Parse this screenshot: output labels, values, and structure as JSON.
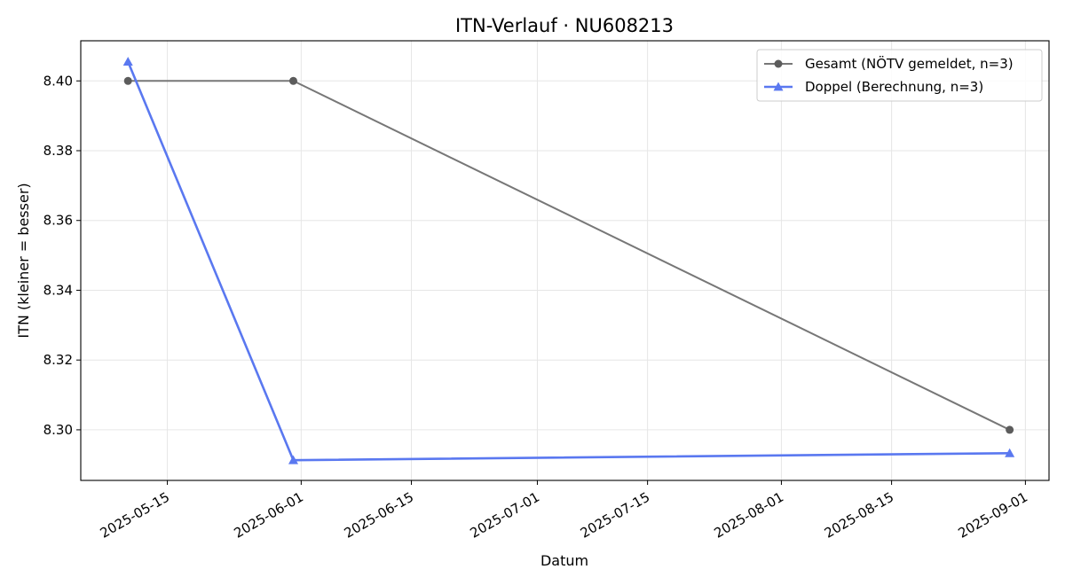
{
  "chart_data": {
    "type": "line",
    "title": "ITN-Verlauf · NU608213",
    "xlabel": "Datum",
    "ylabel": "ITN  (kleiner = besser)",
    "x_ticks": [
      "2025-05-15",
      "2025-06-01",
      "2025-06-15",
      "2025-07-01",
      "2025-07-15",
      "2025-08-01",
      "2025-08-15",
      "2025-09-01"
    ],
    "y_ticks": [
      "8.30",
      "8.32",
      "8.34",
      "8.36",
      "8.38",
      "8.40"
    ],
    "xlim": [
      "2025-05-04",
      "2025-09-04"
    ],
    "ylim": [
      8.2855,
      8.4115
    ],
    "grid": true,
    "legend_position": "top-right",
    "series": [
      {
        "name": "Gesamt (NÖTV gemeldet, n=3)",
        "color": "#777777",
        "marker": "circle",
        "points": [
          {
            "x": "2025-05-10",
            "y": 8.4
          },
          {
            "x": "2025-05-31",
            "y": 8.4
          },
          {
            "x": "2025-08-30",
            "y": 8.3
          }
        ]
      },
      {
        "name": "Doppel (Berechnung, n=3)",
        "color": "#5a78f0",
        "marker": "triangle",
        "points": [
          {
            "x": "2025-05-10",
            "y": 8.4055
          },
          {
            "x": "2025-05-31",
            "y": 8.2913
          },
          {
            "x": "2025-08-30",
            "y": 8.2933
          }
        ]
      }
    ]
  }
}
